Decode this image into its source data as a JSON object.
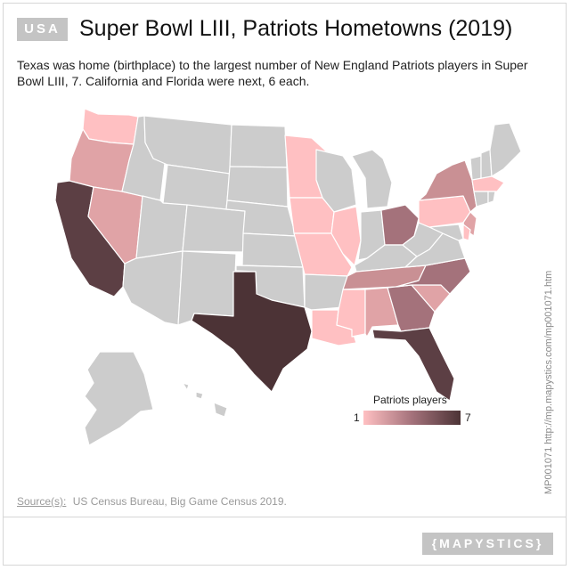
{
  "badge": "USA",
  "title": "Super Bowl LIII, Patriots Hometowns (2019)",
  "subtitle": "Texas was home (birthplace) to the largest number of New England Patriots players in Super Bowl LIII, 7. California and Florida were next, 6 each.",
  "legend": {
    "title": "Patriots players",
    "min": "1",
    "max": "7"
  },
  "vertical_note": "MP001071 http://mp.mapystics.com/mp001071.htm",
  "source": {
    "label": "Source(s):",
    "text": "US Census Bureau, Big Game Census 2019."
  },
  "brand": "{MAPYSTICS}",
  "colors": {
    "no_data": "#cccccc",
    "value_1": "#ffc0c2",
    "value_2": "#e0a3a6",
    "value_3": "#c99094",
    "value_4": "#a4727b",
    "value_6": "#5c3f44",
    "value_7": "#4c3336",
    "border": "#ffffff"
  },
  "states": [
    {
      "name": "Washington",
      "players": 1
    },
    {
      "name": "Oregon",
      "players": 2
    },
    {
      "name": "California",
      "players": 6
    },
    {
      "name": "Nevada",
      "players": 2
    },
    {
      "name": "Texas",
      "players": 7
    },
    {
      "name": "Minnesota",
      "players": 1
    },
    {
      "name": "Iowa",
      "players": 1
    },
    {
      "name": "Missouri",
      "players": 1
    },
    {
      "name": "Illinois",
      "players": 1
    },
    {
      "name": "Louisiana",
      "players": 1
    },
    {
      "name": "Mississippi",
      "players": 1
    },
    {
      "name": "Alabama",
      "players": 2
    },
    {
      "name": "Georgia",
      "players": 4
    },
    {
      "name": "Florida",
      "players": 6
    },
    {
      "name": "South Carolina",
      "players": 2
    },
    {
      "name": "North Carolina",
      "players": 4
    },
    {
      "name": "Tennessee",
      "players": 3
    },
    {
      "name": "Ohio",
      "players": 4
    },
    {
      "name": "New York",
      "players": 3
    },
    {
      "name": "Pennsylvania",
      "players": 1
    },
    {
      "name": "New Jersey",
      "players": 2
    },
    {
      "name": "Delaware",
      "players": 1
    },
    {
      "name": "Massachusetts",
      "players": 1
    }
  ]
}
